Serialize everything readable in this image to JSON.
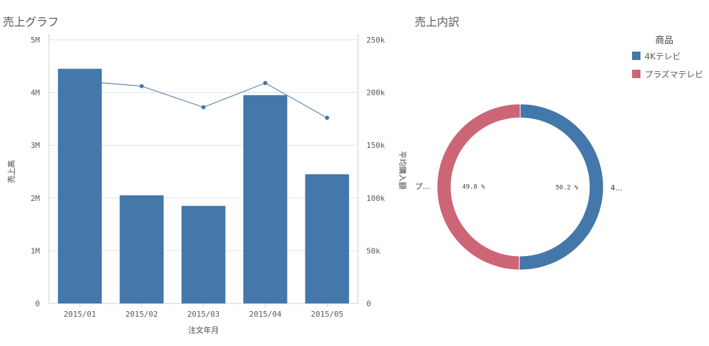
{
  "left_panel": {
    "title": "売上グラフ"
  },
  "right_panel": {
    "title": "売上内訳"
  },
  "chart_data": [
    {
      "type": "bar",
      "categories": [
        "2015/01",
        "2015/02",
        "2015/03",
        "2015/04",
        "2015/05"
      ],
      "series": [
        {
          "type": "bar",
          "axis": "left",
          "values": [
            4450000,
            2050000,
            1850000,
            3950000,
            2450000
          ],
          "color": "#4477aa"
        },
        {
          "type": "line",
          "axis": "right",
          "values": [
            211000,
            206000,
            186000,
            209000,
            176000
          ],
          "color": "#4477aa"
        }
      ],
      "xlabel": "注文年月",
      "ylabel": "売上高",
      "y2label": "平均購入額",
      "ylim": [
        0,
        5000000
      ],
      "y2lim": [
        0,
        250000
      ],
      "yticks": [
        "0",
        "1M",
        "2M",
        "3M",
        "4M",
        "5M"
      ],
      "y2ticks": [
        "0",
        "50k",
        "100k",
        "150k",
        "200k",
        "250k"
      ],
      "grid": true
    },
    {
      "type": "pie",
      "style": "donut",
      "legend_title": "商品",
      "legend_position": "top-right",
      "slices": [
        {
          "name": "4Kテレビ",
          "short_label": "4...",
          "percent": 50.2,
          "percent_label": "50.2 %",
          "color": "#4477aa"
        },
        {
          "name": "プラズマテレビ",
          "short_label": "プ...",
          "percent": 49.8,
          "percent_label": "49.8 %",
          "color": "#cc6677"
        }
      ]
    }
  ]
}
